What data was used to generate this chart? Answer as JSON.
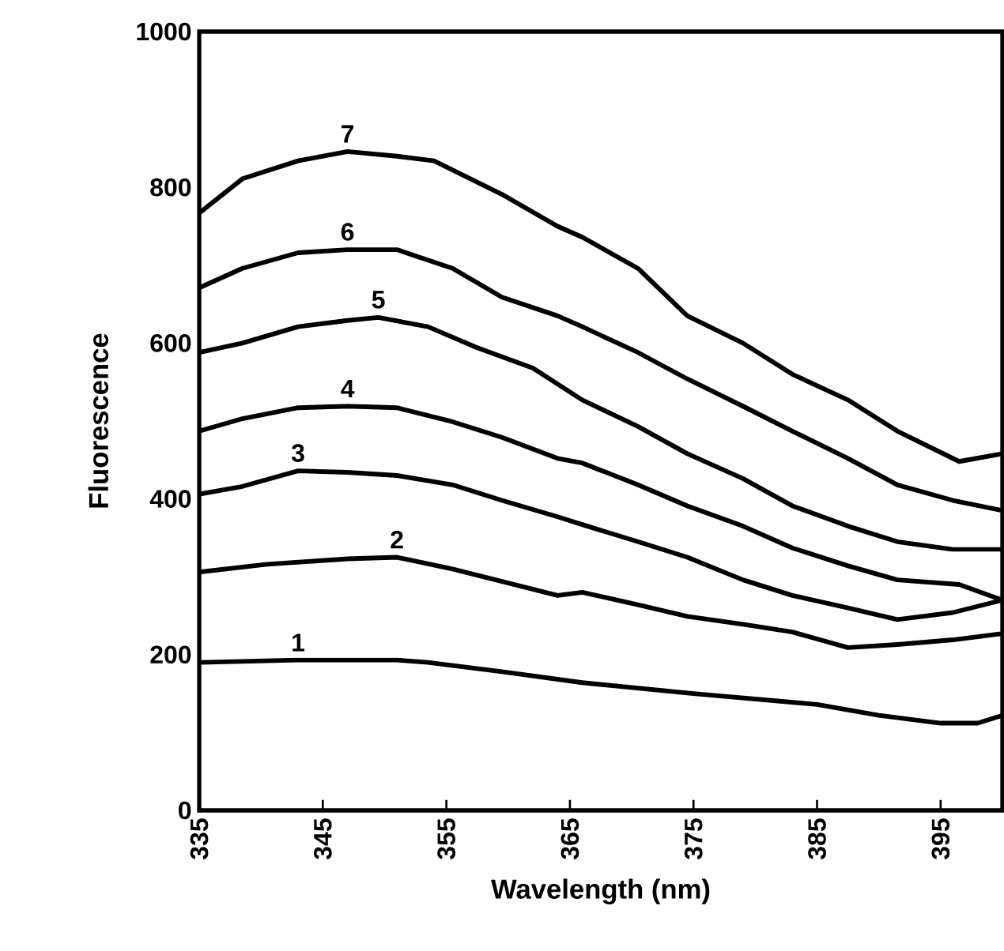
{
  "chart_data": {
    "type": "line",
    "xlabel": "Wavelength  (nm)",
    "ylabel": "Fluorescence",
    "xlim": [
      335,
      400
    ],
    "ylim": [
      0,
      1000
    ],
    "xticks": [
      335,
      345,
      355,
      365,
      375,
      385,
      395
    ],
    "yticks": [
      0,
      200,
      400,
      600,
      800,
      1000
    ],
    "grid": false,
    "legend": false,
    "marker": "none",
    "line_style": "solid",
    "series": [
      {
        "name": "1",
        "color": "#000000",
        "x": [
          335,
          343,
          351,
          353.5,
          359.5,
          366,
          375,
          385,
          390,
          395,
          398,
          400
        ],
        "values": [
          190,
          193,
          193,
          190,
          178,
          164,
          150,
          136,
          122,
          112,
          112,
          122
        ]
      },
      {
        "name": "2",
        "color": "#000000",
        "x": [
          335,
          340.5,
          347,
          351,
          355.5,
          359.5,
          364,
          366,
          370.5,
          374.5,
          379,
          383,
          387.5,
          391.5,
          396,
          400
        ],
        "values": [
          306,
          316,
          323,
          325,
          310,
          294,
          276,
          280,
          264,
          249,
          239,
          229,
          209,
          213,
          219,
          227
        ]
      },
      {
        "name": "3",
        "color": "#000000",
        "x": [
          335,
          338.5,
          343,
          347,
          351,
          355.5,
          359.5,
          364,
          366,
          370.5,
          374.5,
          379,
          383,
          387.5,
          391.5,
          396,
          400
        ],
        "values": [
          406,
          416,
          436,
          434,
          430,
          418,
          398,
          377,
          367,
          345,
          325,
          296,
          276,
          260,
          245,
          254,
          270
        ]
      },
      {
        "name": "4",
        "color": "#000000",
        "x": [
          335,
          338.5,
          343,
          347,
          351,
          355.5,
          359.5,
          364,
          366,
          370.5,
          374.5,
          379,
          383,
          387.5,
          391.5,
          396.5,
          400
        ],
        "values": [
          487,
          503,
          517,
          519,
          517,
          499,
          479,
          452,
          446,
          418,
          391,
          365,
          337,
          314,
          296,
          290,
          270
        ]
      },
      {
        "name": "5",
        "color": "#000000",
        "x": [
          335,
          338.5,
          343,
          347,
          349.5,
          353.5,
          357.5,
          362,
          366,
          370.5,
          374.5,
          379,
          383,
          387.5,
          391.5,
          396,
          400
        ],
        "values": [
          588,
          600,
          621,
          629,
          633,
          621,
          594,
          568,
          527,
          493,
          458,
          426,
          391,
          365,
          345,
          335,
          335
        ]
      },
      {
        "name": "6",
        "color": "#000000",
        "x": [
          335,
          338.5,
          343,
          347,
          351,
          355.5,
          359.5,
          364,
          366,
          370.5,
          374.5,
          379,
          383,
          387.5,
          391.5,
          396,
          400
        ],
        "values": [
          671,
          696,
          716,
          720,
          720,
          696,
          659,
          635,
          621,
          588,
          554,
          519,
          487,
          452,
          418,
          398,
          385
        ]
      },
      {
        "name": "7",
        "color": "#000000",
        "x": [
          335,
          338.5,
          343,
          347,
          351,
          354,
          359.5,
          364,
          366,
          370.5,
          374.5,
          379,
          383,
          387.5,
          391.5,
          396.5,
          400
        ],
        "values": [
          767,
          811,
          834,
          846,
          840,
          834,
          791,
          750,
          736,
          696,
          635,
          600,
          560,
          527,
          487,
          448,
          458
        ]
      }
    ]
  }
}
